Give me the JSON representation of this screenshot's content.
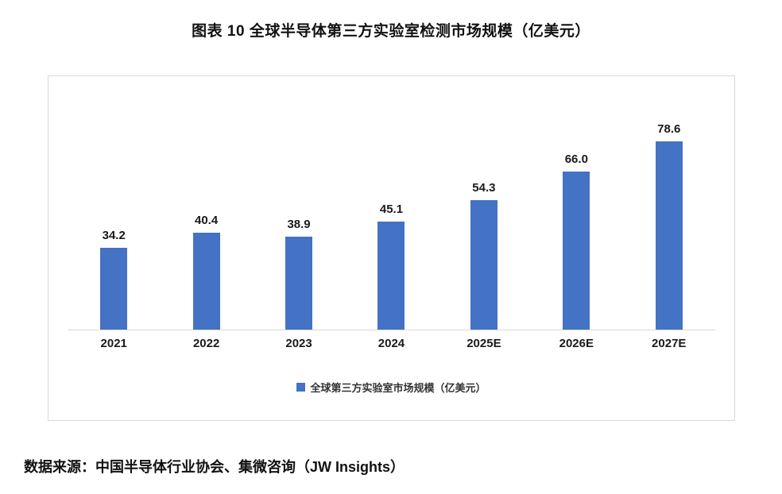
{
  "title": "图表 10 全球半导体第三方实验室检测市场规模（亿美元）",
  "source": "数据来源：中国半导体行业协会、集微咨询（JW Insights）",
  "legend": {
    "label": "全球第三方实验室市场规模（亿美元）"
  },
  "colors": {
    "bar": "#4472C4",
    "axis": "#d9d9d9",
    "border": "#d9d9d9",
    "text": "#1a1a1a"
  },
  "chart_data": {
    "type": "bar",
    "categories": [
      "2021",
      "2022",
      "2023",
      "2024",
      "2025E",
      "2026E",
      "2027E"
    ],
    "values": [
      34.2,
      40.4,
      38.9,
      45.1,
      54.3,
      66.0,
      78.6
    ],
    "value_decimals": 1,
    "title": "图表 10 全球半导体第三方实验室检测市场规模（亿美元）",
    "xlabel": "",
    "ylabel": "",
    "ylim": [
      0,
      90
    ],
    "grid": false,
    "legend_entries": [
      "全球第三方实验室市场规模（亿美元）"
    ],
    "legend_position": "bottom",
    "bar_color": "#4472C4"
  }
}
